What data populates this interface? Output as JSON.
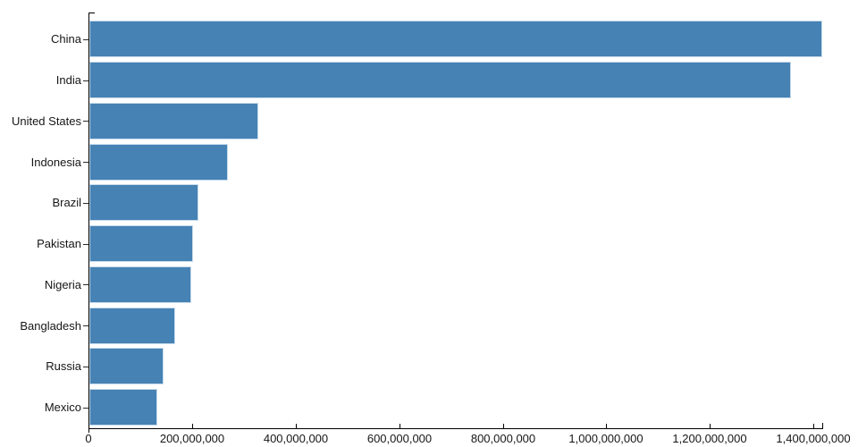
{
  "chart_data": {
    "type": "bar",
    "orientation": "horizontal",
    "title": "",
    "xlabel": "",
    "ylabel": "",
    "legend": "none",
    "grid": false,
    "categories": [
      "China",
      "India",
      "United States",
      "Indonesia",
      "Brazil",
      "Pakistan",
      "Nigeria",
      "Bangladesh",
      "Russia",
      "Mexico"
    ],
    "values": [
      1415045928,
      1354051854,
      326766748,
      266794980,
      210867954,
      200813818,
      195875237,
      166368149,
      143964709,
      130759074
    ],
    "xlim": [
      0,
      1415045928
    ],
    "x_ticks": [
      {
        "value": 0,
        "label": "0"
      },
      {
        "value": 200000000,
        "label": "200,000,000"
      },
      {
        "value": 400000000,
        "label": "400,000,000"
      },
      {
        "value": 600000000,
        "label": "600,000,000"
      },
      {
        "value": 800000000,
        "label": "800,000,000"
      },
      {
        "value": 1000000000,
        "label": "1,000,000,000"
      },
      {
        "value": 1200000000,
        "label": "1,200,000,000"
      },
      {
        "value": 1400000000,
        "label": "1,400,000,000"
      }
    ],
    "colors": {
      "bar_fill": "#4682b4",
      "bar_edge": "#c7dbec",
      "axis": "#000000",
      "text": "#161616"
    }
  }
}
